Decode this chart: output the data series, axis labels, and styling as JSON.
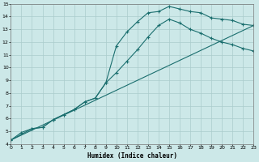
{
  "xlabel": "Humidex (Indice chaleur)",
  "background_color": "#cce8e8",
  "grid_color": "#aacccc",
  "line_color": "#1a6e6e",
  "xlim": [
    0,
    23
  ],
  "ylim": [
    4,
    15
  ],
  "xticks": [
    0,
    1,
    2,
    3,
    4,
    5,
    6,
    7,
    8,
    9,
    10,
    11,
    12,
    13,
    14,
    15,
    16,
    17,
    18,
    19,
    20,
    21,
    22,
    23
  ],
  "yticks": [
    4,
    5,
    6,
    7,
    8,
    9,
    10,
    11,
    12,
    13,
    14,
    15
  ],
  "line1_x": [
    0,
    1,
    2,
    3,
    4,
    5,
    6,
    7,
    8,
    9,
    10,
    11,
    12,
    13,
    14,
    15,
    16,
    17,
    18,
    19,
    20,
    21,
    22,
    23
  ],
  "line1_y": [
    4.3,
    4.9,
    5.2,
    5.3,
    5.9,
    6.3,
    6.7,
    7.3,
    7.6,
    8.8,
    11.7,
    12.8,
    13.6,
    14.3,
    14.4,
    14.8,
    14.6,
    14.4,
    14.3,
    13.9,
    13.8,
    13.7,
    13.4,
    13.3
  ],
  "line2_x": [
    0,
    2,
    3,
    4,
    5,
    6,
    7,
    8,
    9,
    10,
    11,
    12,
    13,
    14,
    15,
    16,
    17,
    18,
    19,
    20,
    21,
    22,
    23
  ],
  "line2_y": [
    4.3,
    5.2,
    5.3,
    5.9,
    6.3,
    6.7,
    7.3,
    7.6,
    8.8,
    9.6,
    10.5,
    11.4,
    12.4,
    13.3,
    13.8,
    13.5,
    13.0,
    12.7,
    12.3,
    12.0,
    11.8,
    11.5,
    11.3
  ],
  "line3_x": [
    0,
    23
  ],
  "line3_y": [
    4.3,
    13.3
  ]
}
